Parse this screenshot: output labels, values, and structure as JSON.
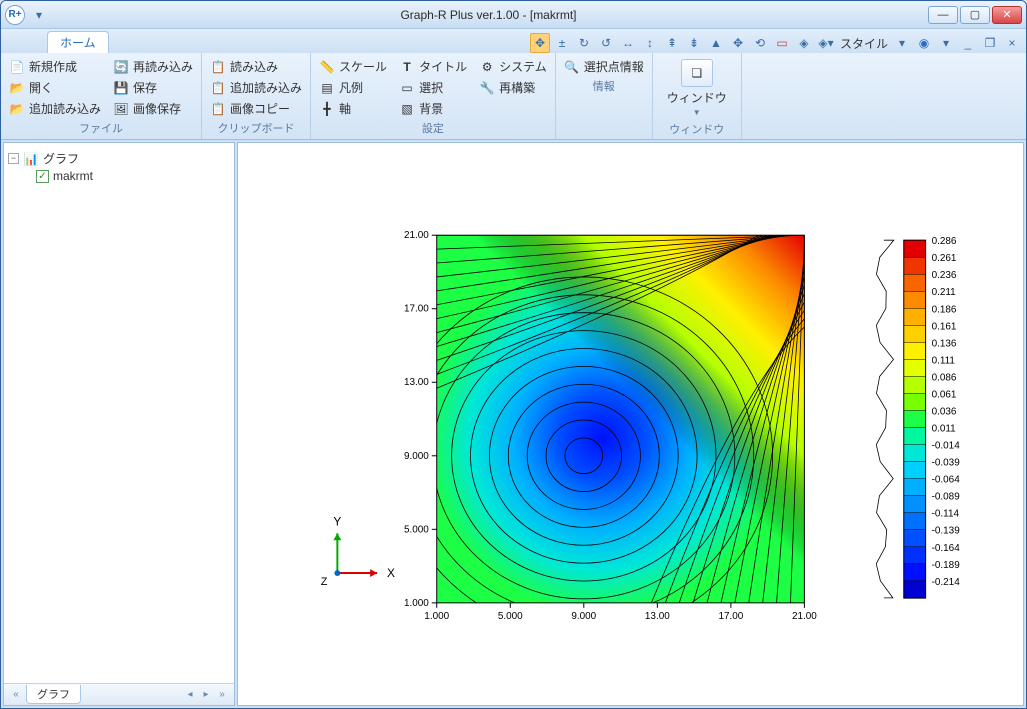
{
  "window": {
    "title": "Graph-R Plus ver.1.00 - [makrmt]",
    "app_icon": "R+"
  },
  "tabs": {
    "home": "ホーム"
  },
  "toolbar_right": {
    "style_label": "スタイル"
  },
  "ribbon": {
    "file": {
      "label": "ファイル",
      "new": "新規作成",
      "open": "開く",
      "add_load": "追加読み込み",
      "reload": "再読み込み",
      "save": "保存",
      "save_image": "画像保存"
    },
    "clipboard": {
      "label": "クリップボード",
      "load": "読み込み",
      "add_load": "追加読み込み",
      "copy_image": "画像コピー"
    },
    "settings": {
      "label": "設定",
      "scale": "スケール",
      "legend": "凡例",
      "axis": "軸",
      "title": "タイトル",
      "select": "選択",
      "background": "背景",
      "system": "システム",
      "rebuild": "再構築"
    },
    "info": {
      "label": "情報",
      "selpoint": "選択点情報"
    },
    "window": {
      "label": "ウィンドウ",
      "window": "ウィンドウ"
    }
  },
  "tree": {
    "root": "グラフ",
    "item": "makrmt",
    "tab": "グラフ"
  },
  "chart": {
    "type": "contour",
    "xlabel": "X",
    "ylabel": "Y",
    "zlabel": "Z",
    "xlim": [
      1,
      21
    ],
    "ylim": [
      1,
      21
    ],
    "xticks": [
      "1.000",
      "5.000",
      "9.000",
      "13.00",
      "17.00",
      "21.00"
    ],
    "yticks": [
      "1.000",
      "5.000",
      "9.000",
      "13.00",
      "17.00",
      "21.00"
    ],
    "tick_fontsize": 10,
    "background_color": "#ffffff",
    "colorbar_values": [
      "0.286",
      "0.261",
      "0.236",
      "0.211",
      "0.186",
      "0.161",
      "0.136",
      "0.111",
      "0.086",
      "0.061",
      "0.036",
      "0.011",
      "-0.014",
      "-0.039",
      "-0.064",
      "-0.089",
      "-0.114",
      "-0.139",
      "-0.164",
      "-0.189",
      "-0.214"
    ],
    "colorbar_colors": [
      "#e40000",
      "#f03600",
      "#f76400",
      "#fc8b00",
      "#ffb000",
      "#ffd000",
      "#fff000",
      "#e4ff00",
      "#b4ff00",
      "#78ff00",
      "#1cff44",
      "#00f7a0",
      "#00e7d8",
      "#00d0ff",
      "#00b0ff",
      "#0090ff",
      "#0070ff",
      "#0050ff",
      "#0030ff",
      "#0010ff",
      "#0000d0"
    ]
  }
}
